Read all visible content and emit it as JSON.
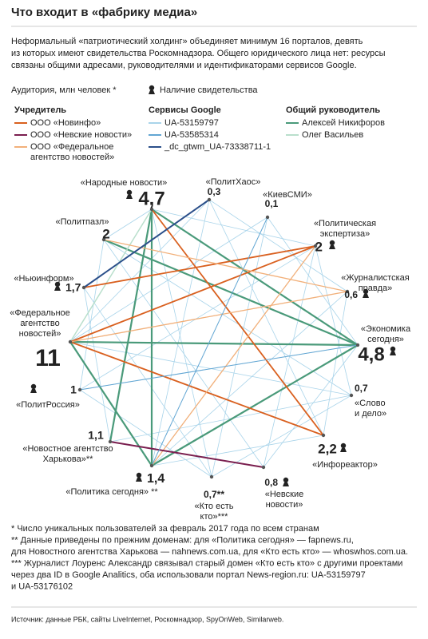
{
  "header": {
    "title": "Что входит в «фабрику медиа»",
    "intro": [
      "Неформальный «патриотический холдинг» объединяет минимум 16 порталов, девять",
      "из которых имеют свидетельства Роскомнадзора. Общего юридического лица нет: ресурсы",
      "связаны общими адресами, руководителями и идентификаторами сервисов Google."
    ]
  },
  "legend": {
    "audience": "Аудитория, млн человек *",
    "certificate": "Наличие свидетельства",
    "groups": [
      {
        "title": "Учредитель",
        "items": [
          [
            "ООО «Новинфо»"
          ],
          [
            "ООО «Невские новости»"
          ],
          [
            "ООО «Федеральное",
            "агентство новостей»"
          ]
        ]
      },
      {
        "title": "Сервисы Google",
        "items": [
          [
            "UA-53159797"
          ],
          [
            "UA-53585314"
          ],
          [
            "_dc_gtwm_UA-73338711-1"
          ]
        ]
      },
      {
        "title": "Общий руководитель",
        "items": [
          [
            "Алексей Никифоров"
          ],
          [
            "Олег Васильев"
          ]
        ]
      }
    ]
  },
  "nodes": [
    {
      "label": [
        "«Народные новости»"
      ],
      "audience": "4,7",
      "certificate": true
    },
    {
      "label": [
        "«ПолитХаос»"
      ],
      "audience": "0,3",
      "certificate": false
    },
    {
      "label": [
        "«КиевСМИ»"
      ],
      "audience": "0,1",
      "certificate": false
    },
    {
      "label": [
        "«Политическая",
        "экспертиза»"
      ],
      "audience": "2",
      "certificate": true
    },
    {
      "label": [
        "«Журналистская",
        "правда»"
      ],
      "audience": "0,6",
      "certificate": true
    },
    {
      "label": [
        "«Экономика",
        "сегодня»"
      ],
      "audience": "4,8",
      "certificate": true
    },
    {
      "label": [
        "«Слово",
        "и дело»"
      ],
      "audience": "0,7",
      "certificate": false
    },
    {
      "label": [
        "«Инфореактор»"
      ],
      "audience": "2,2",
      "certificate": true
    },
    {
      "label": [
        "«Невские",
        "новости»"
      ],
      "audience": "0,8",
      "certificate": true
    },
    {
      "label": [
        "«Кто есть",
        "кто»***"
      ],
      "audience": "0,7**",
      "certificate": false
    },
    {
      "label": [
        "«Политика сегодня» **"
      ],
      "audience": "1,4",
      "certificate": true
    },
    {
      "label": [
        "«Новостное агентство",
        "Харькова»**"
      ],
      "audience": "1,1",
      "certificate": false
    },
    {
      "label": [
        "«ПолитРоссия»"
      ],
      "audience": "1",
      "certificate": false
    },
    {
      "label": [
        "«Федеральное",
        "агентство",
        "новостей»"
      ],
      "audience": "11",
      "certificate": true
    },
    {
      "label": [
        "«Ньюинформ»"
      ],
      "audience": "1,7",
      "certificate": true
    },
    {
      "label": [
        "«Политпазл»"
      ],
      "audience": "2",
      "certificate": false
    }
  ],
  "notes": [
    "* Число уникальных пользователей за февраль 2017 года по всем странам",
    "** Данные приведены по прежним доменам: для «Политика сегодня» — fapnews.ru,",
    "для Новостного агентства Харькова — nahnews.com.ua, для «Кто есть кто» — whoswhos.com.ua.",
    "*** Журналист Лоуренс Александр связывал старый домен «Кто есть кто» с другими проектами",
    "через два ID в Google Analitics, оба использовали портал News-region.ru: UA-53159797",
    "и UA-53176102"
  ],
  "source": "Источник: данные РБК, сайты LiveInternet, Роскомнадзор, SpyOnWeb, Similarweb."
}
